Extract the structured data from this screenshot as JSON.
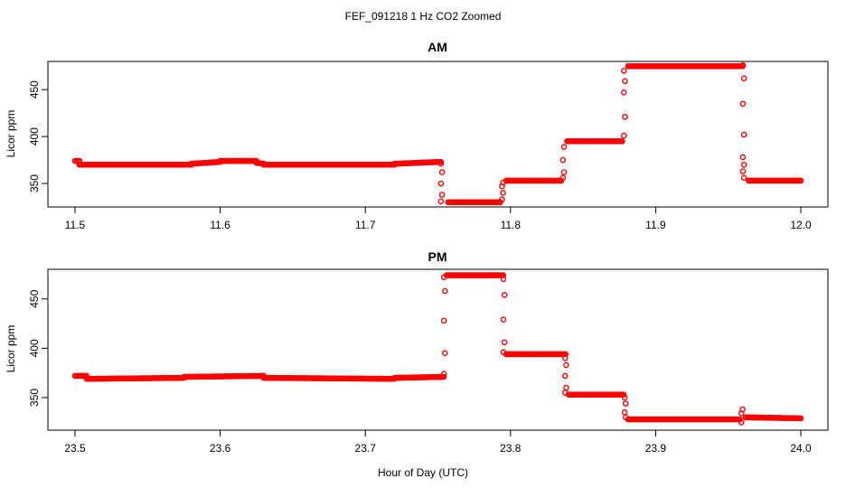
{
  "figure": {
    "title": "FEF_091218  1 Hz CO2 Zoomed",
    "xlabel": "Hour of Day (UTC)"
  },
  "colors": {
    "points": "#ff0000",
    "axis": "#000000",
    "background": "#ffffff"
  },
  "chart_data": [
    {
      "type": "scatter",
      "title": "AM",
      "ylabel": "Licor ppm",
      "xlim": [
        11.5,
        12.0
      ],
      "ylim": [
        325,
        480
      ],
      "xticks": [
        "11.5",
        "11.6",
        "11.7",
        "11.8",
        "11.9",
        "12.0"
      ],
      "yticks": [
        "350",
        "400",
        "450"
      ],
      "grid": false,
      "series": [
        {
          "marker": "open-circle",
          "segments": [
            {
              "x": [
                11.5,
                11.503
              ],
              "y": [
                374,
                374
              ]
            },
            {
              "x": [
                11.503,
                11.58
              ],
              "y": [
                370,
                370
              ]
            },
            {
              "x": [
                11.58,
                11.6
              ],
              "y": [
                371,
                373
              ]
            },
            {
              "x": [
                11.6,
                11.625
              ],
              "y": [
                374,
                374
              ]
            },
            {
              "x": [
                11.625,
                11.63
              ],
              "y": [
                372,
                371
              ]
            },
            {
              "x": [
                11.63,
                11.72
              ],
              "y": [
                370,
                370
              ]
            },
            {
              "x": [
                11.72,
                11.752
              ],
              "y": [
                371,
                373
              ]
            },
            {
              "x": [
                11.757,
                11.793
              ],
              "y": [
                330,
                330
              ]
            },
            {
              "x": [
                11.797,
                11.835
              ],
              "y": [
                353,
                353
              ]
            },
            {
              "x": [
                11.839,
                11.877
              ],
              "y": [
                395,
                395
              ]
            },
            {
              "x": [
                11.881,
                11.96
              ],
              "y": [
                475,
                475
              ]
            },
            {
              "x": [
                11.964,
                12.0
              ],
              "y": [
                353,
                353
              ]
            }
          ],
          "transitions": [
            {
              "x": 11.7525,
              "y": [
                371,
                362,
                350,
                338,
                331
              ]
            },
            {
              "x": 11.7945,
              "y": [
                333,
                340,
                347,
                351
              ]
            },
            {
              "x": 11.8365,
              "y": [
                356,
                362,
                375,
                389
              ]
            },
            {
              "x": 11.8785,
              "y": [
                401,
                421,
                447,
                459,
                470
              ]
            },
            {
              "x": 11.9605,
              "y": [
                476,
                462,
                435,
                402,
                378,
                370,
                363,
                356
              ]
            }
          ]
        }
      ]
    },
    {
      "type": "scatter",
      "title": "PM",
      "ylabel": "Licor ppm",
      "xlim": [
        23.5,
        24.0
      ],
      "ylim": [
        317,
        480
      ],
      "xticks": [
        "23.5",
        "23.6",
        "23.7",
        "23.8",
        "23.9",
        "24.0"
      ],
      "yticks": [
        "350",
        "400",
        "450"
      ],
      "grid": false,
      "series": [
        {
          "marker": "open-circle",
          "segments": [
            {
              "x": [
                23.5,
                23.508
              ],
              "y": [
                372,
                372
              ]
            },
            {
              "x": [
                23.508,
                23.575
              ],
              "y": [
                369,
                370
              ]
            },
            {
              "x": [
                23.575,
                23.63
              ],
              "y": [
                371,
                372
              ]
            },
            {
              "x": [
                23.63,
                23.72
              ],
              "y": [
                370,
                369
              ]
            },
            {
              "x": [
                23.72,
                23.754
              ],
              "y": [
                370,
                371
              ]
            },
            {
              "x": [
                23.756,
                23.795
              ],
              "y": [
                474,
                474
              ]
            },
            {
              "x": [
                23.797,
                23.838
              ],
              "y": [
                394,
                394
              ]
            },
            {
              "x": [
                23.84,
                23.878
              ],
              "y": [
                353,
                353
              ]
            },
            {
              "x": [
                23.881,
                23.958
              ],
              "y": [
                328,
                328
              ]
            },
            {
              "x": [
                23.962,
                24.0
              ],
              "y": [
                330,
                329
              ]
            }
          ],
          "transitions": [
            {
              "x": 23.7545,
              "y": [
                374,
                395,
                428,
                458,
                472
              ]
            },
            {
              "x": 23.7955,
              "y": [
                470,
                454,
                429,
                406,
                396
              ]
            },
            {
              "x": 23.838,
              "y": [
                390,
                383,
                372,
                360,
                355
              ]
            },
            {
              "x": 23.879,
              "y": [
                350,
                344,
                335,
                330
              ]
            },
            {
              "x": 23.9595,
              "y": [
                325,
                338,
                334
              ]
            }
          ]
        }
      ]
    }
  ]
}
